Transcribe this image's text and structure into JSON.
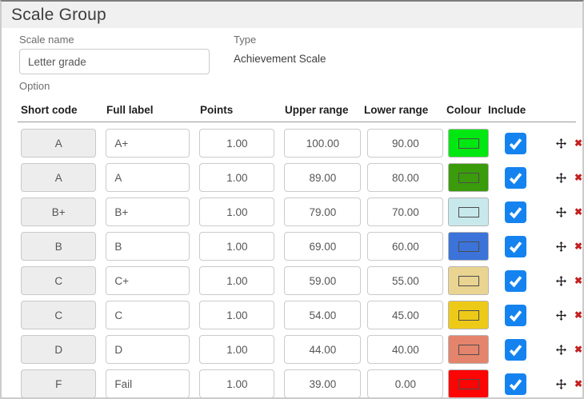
{
  "page": {
    "title": "Scale Group"
  },
  "form": {
    "scale_name_label": "Scale name",
    "scale_name_value": "Letter grade",
    "type_label": "Type",
    "type_value": "Achievement Scale",
    "option_label": "Option"
  },
  "table": {
    "headers": [
      "Short code",
      "Full label",
      "Points",
      "Upper range",
      "Lower range",
      "Colour",
      "Include"
    ],
    "rows": [
      {
        "short_code": "A",
        "full_label": "A+",
        "points": "1.00",
        "upper": "100.00",
        "lower": "90.00",
        "colour": "#00e711",
        "include": true
      },
      {
        "short_code": "A",
        "full_label": "A",
        "points": "1.00",
        "upper": "89.00",
        "lower": "80.00",
        "colour": "#3a9b0b",
        "include": true
      },
      {
        "short_code": "B+",
        "full_label": "B+",
        "points": "1.00",
        "upper": "79.00",
        "lower": "70.00",
        "colour": "#c8e9ec",
        "include": true
      },
      {
        "short_code": "B",
        "full_label": "B",
        "points": "1.00",
        "upper": "69.00",
        "lower": "60.00",
        "colour": "#3b73d9",
        "include": true
      },
      {
        "short_code": "C",
        "full_label": "C+",
        "points": "1.00",
        "upper": "59.00",
        "lower": "55.00",
        "colour": "#ead491",
        "include": true
      },
      {
        "short_code": "C",
        "full_label": "C",
        "points": "1.00",
        "upper": "54.00",
        "lower": "45.00",
        "colour": "#edca18",
        "include": true
      },
      {
        "short_code": "D",
        "full_label": "D",
        "points": "1.00",
        "upper": "44.00",
        "lower": "40.00",
        "colour": "#e5846c",
        "include": true
      },
      {
        "short_code": "F",
        "full_label": "Fail",
        "points": "1.00",
        "upper": "39.00",
        "lower": "0.00",
        "colour": "#fb0505",
        "include": true
      }
    ]
  },
  "colors": {
    "checkbox_blue": "#1583ef",
    "delete_red": "#c41f1f",
    "header_bar_bg": "#f0f0f0"
  }
}
